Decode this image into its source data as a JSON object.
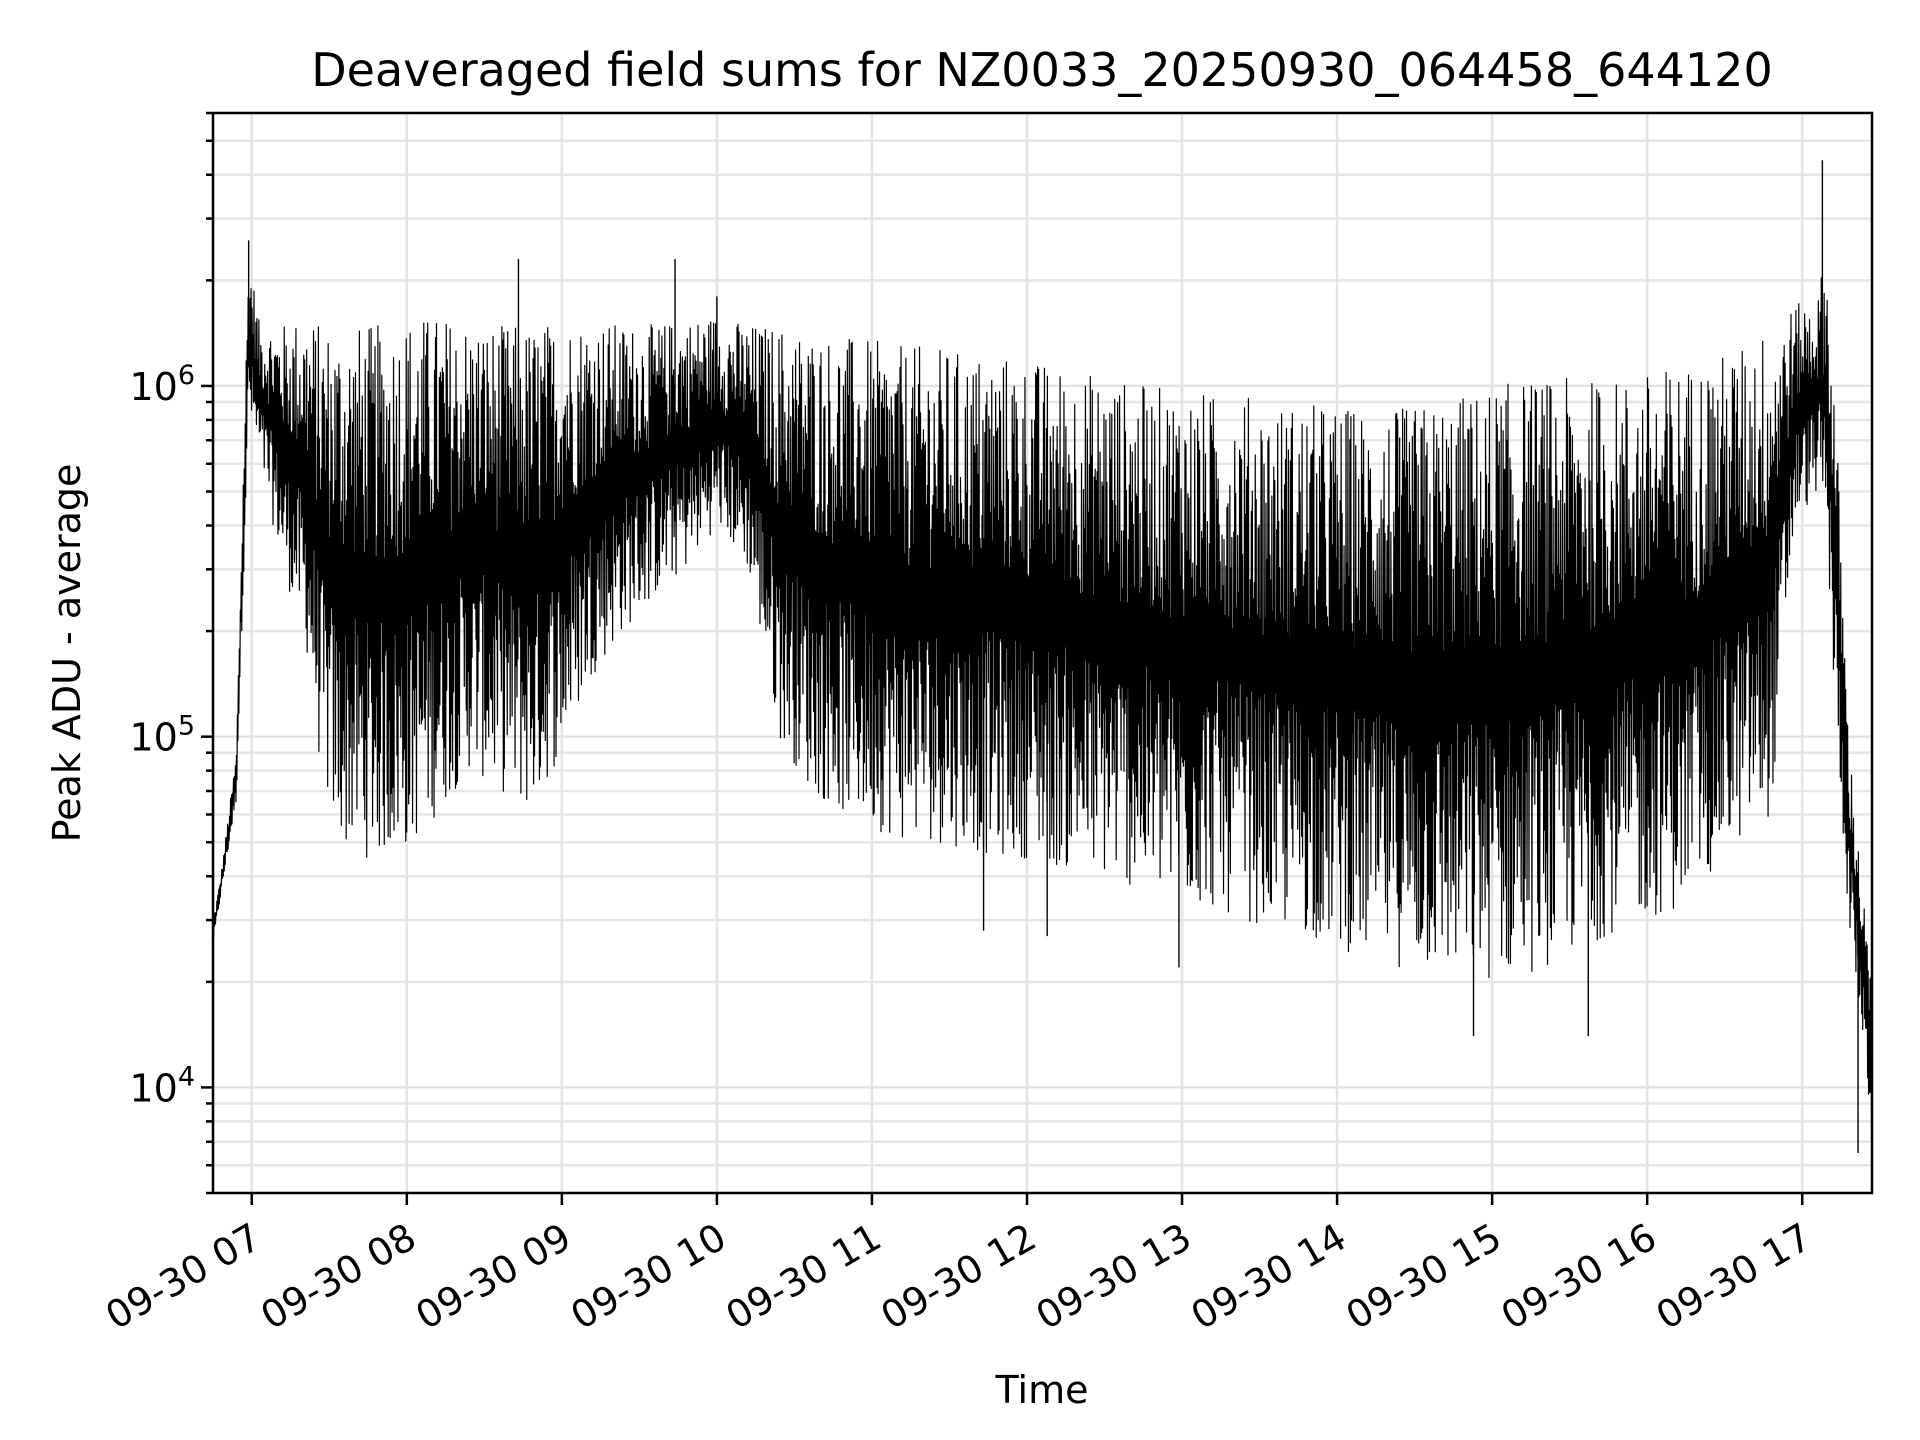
{
  "chart_data": {
    "type": "line",
    "title": "Deaveraged field sums for NZ0033_20250930_064458_644120",
    "xlabel": "Time",
    "ylabel": "Peak ADU - average",
    "yscale": "log",
    "ylim": [
      5000,
      6000000
    ],
    "xlim_hours": [
      6.75,
      17.45
    ],
    "grid": true,
    "x_ticks": [
      {
        "hour": 7,
        "label": "09-30 07"
      },
      {
        "hour": 8,
        "label": "09-30 08"
      },
      {
        "hour": 9,
        "label": "09-30 09"
      },
      {
        "hour": 10,
        "label": "09-30 10"
      },
      {
        "hour": 11,
        "label": "09-30 11"
      },
      {
        "hour": 12,
        "label": "09-30 12"
      },
      {
        "hour": 13,
        "label": "09-30 13"
      },
      {
        "hour": 14,
        "label": "09-30 14"
      },
      {
        "hour": 15,
        "label": "09-30 15"
      },
      {
        "hour": 16,
        "label": "09-30 16"
      },
      {
        "hour": 17,
        "label": "09-30 17"
      }
    ],
    "y_ticks": [
      {
        "value": 10000,
        "base": "10",
        "exp": "4"
      },
      {
        "value": 100000,
        "base": "10",
        "exp": "5"
      },
      {
        "value": 1000000,
        "base": "10",
        "exp": "6"
      }
    ],
    "series": [
      {
        "name": "Peak ADU - average",
        "color": "#000000",
        "envelope": {
          "hours": [
            6.75,
            6.8,
            6.9,
            6.98,
            7.05,
            7.2,
            7.35,
            7.45,
            7.55,
            7.7,
            7.85,
            8.0,
            8.2,
            8.4,
            8.6,
            8.8,
            9.0,
            9.2,
            9.4,
            9.6,
            9.8,
            10.0,
            10.2,
            10.4,
            10.6,
            10.8,
            11.0,
            11.2,
            11.4,
            11.6,
            11.8,
            12.0,
            12.2,
            12.4,
            12.6,
            12.8,
            13.0,
            13.2,
            13.4,
            13.6,
            13.8,
            14.0,
            14.2,
            14.4,
            14.6,
            14.8,
            15.0,
            15.2,
            15.4,
            15.6,
            15.8,
            16.0,
            16.2,
            16.4,
            16.6,
            16.8,
            16.95,
            17.1,
            17.15,
            17.22,
            17.3,
            17.38,
            17.45
          ],
          "low": [
            25000,
            35000,
            65000,
            800000,
            600000,
            300000,
            180000,
            75000,
            50000,
            45000,
            45000,
            47000,
            60000,
            80000,
            70000,
            60000,
            90000,
            150000,
            200000,
            250000,
            300000,
            400000,
            300000,
            100000,
            70000,
            60000,
            55000,
            50000,
            50000,
            48000,
            45000,
            45000,
            42000,
            40000,
            38000,
            35000,
            33000,
            32000,
            30000,
            28000,
            27000,
            25000,
            23000,
            22000,
            21000,
            20000,
            20000,
            21000,
            22000,
            25000,
            28000,
            30000,
            32000,
            40000,
            50000,
            60000,
            400000,
            500000,
            400000,
            100000,
            30000,
            15000,
            7000
          ],
          "high": [
            30000,
            40000,
            90000,
            2500000,
            1500000,
            1500000,
            1600000,
            1500000,
            1500000,
            1500000,
            1500000,
            1600000,
            1600000,
            1550000,
            1500000,
            1500000,
            1550000,
            1550000,
            1500000,
            1500000,
            1550000,
            1600000,
            1500000,
            1500000,
            1450000,
            1400000,
            1350000,
            1300000,
            1300000,
            1250000,
            1250000,
            1200000,
            1150000,
            1100000,
            1050000,
            1000000,
            1000000,
            950000,
            950000,
            900000,
            900000,
            880000,
            870000,
            860000,
            900000,
            950000,
            1000000,
            1050000,
            1050000,
            1050000,
            1050000,
            1100000,
            1150000,
            1200000,
            1300000,
            1500000,
            1700000,
            1800000,
            2500000,
            800000,
            100000,
            40000,
            20000
          ]
        },
        "spikes": [
          {
            "hour": 6.98,
            "value": 2600000
          },
          {
            "hour": 8.72,
            "value": 2300000
          },
          {
            "hour": 9.73,
            "value": 2300000
          },
          {
            "hour": 10.0,
            "value": 1800000
          },
          {
            "hour": 17.13,
            "value": 4400000
          },
          {
            "hour": 11.72,
            "value": 28000
          },
          {
            "hour": 12.13,
            "value": 27000
          },
          {
            "hour": 12.98,
            "value": 22000
          },
          {
            "hour": 14.88,
            "value": 14000
          },
          {
            "hour": 15.62,
            "value": 14000
          },
          {
            "hour": 17.36,
            "value": 6500
          }
        ]
      }
    ]
  }
}
